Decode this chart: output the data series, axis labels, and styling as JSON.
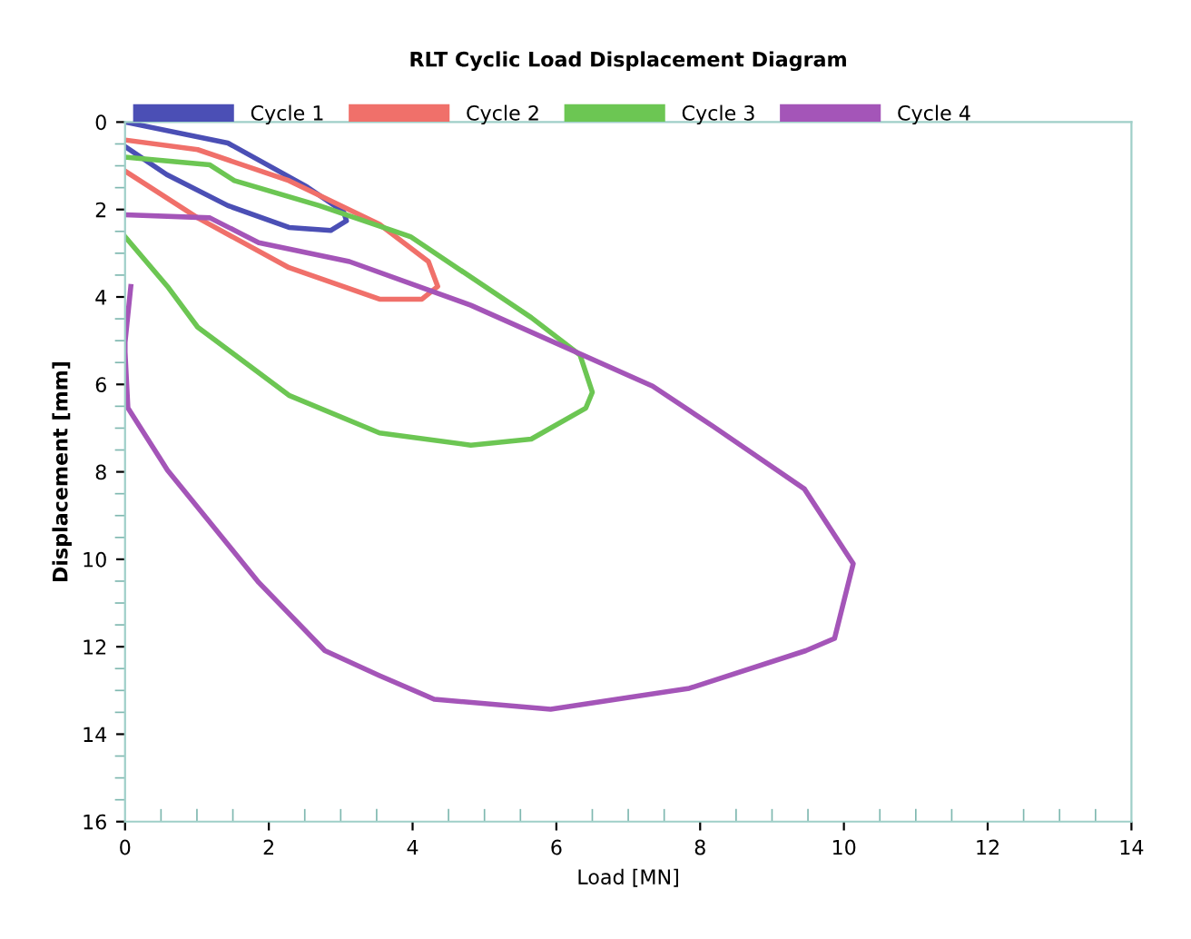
{
  "chart_data": {
    "type": "line",
    "title": "RLT Cyclic Load Displacement Diagram",
    "xlabel": "Load [MN]",
    "ylabel": "Displacement [mm]",
    "xlim": [
      0,
      14
    ],
    "xticks": [
      0,
      2,
      4,
      6,
      8,
      10,
      12,
      14
    ],
    "ylim": [
      16,
      0
    ],
    "yticks": [
      0,
      2,
      4,
      6,
      8,
      10,
      12,
      14,
      16
    ],
    "grid": false,
    "legend": "top",
    "marker": "none",
    "line_style": "solid",
    "series": [
      {
        "name": "Cycle 1",
        "color": "#4b4fb5",
        "x": [
          0,
          1.43,
          2.53,
          3.04,
          3.08,
          2.86,
          2.28,
          1.43,
          0.58,
          0
        ],
        "values": [
          0,
          0.48,
          1.48,
          2.05,
          2.26,
          2.48,
          2.41,
          1.91,
          1.2,
          0.56
        ]
      },
      {
        "name": "Cycle 2",
        "color": "#f0706a",
        "x": [
          0,
          1.01,
          2.28,
          3.54,
          4.22,
          4.35,
          4.13,
          3.54,
          2.28,
          1.01,
          0
        ],
        "values": [
          0.41,
          0.63,
          1.34,
          2.34,
          3.19,
          3.76,
          4.05,
          4.05,
          3.33,
          2.19,
          1.12
        ]
      },
      {
        "name": "Cycle 3",
        "color": "#6cc653",
        "x": [
          0,
          1.18,
          1.52,
          2.7,
          3.97,
          5.65,
          6.33,
          6.5,
          6.41,
          5.65,
          4.81,
          3.54,
          2.28,
          1.01,
          0.59,
          0
        ],
        "values": [
          0.8,
          0.98,
          1.34,
          1.91,
          2.62,
          4.47,
          5.33,
          6.18,
          6.54,
          7.25,
          7.39,
          7.11,
          6.25,
          4.69,
          3.76,
          2.62
        ]
      },
      {
        "name": "Cycle 4",
        "color": "#a455b8",
        "x": [
          0,
          1.18,
          1.86,
          3.12,
          4.81,
          7.34,
          8.19,
          9.45,
          10.13,
          9.87,
          9.47,
          7.85,
          5.92,
          4.3,
          3.54,
          2.78,
          1.86,
          0.59,
          0.04,
          0,
          0,
          0.08
        ],
        "values": [
          2.12,
          2.19,
          2.76,
          3.19,
          4.19,
          6.04,
          6.97,
          8.39,
          10.1,
          11.81,
          12.09,
          12.95,
          13.43,
          13.2,
          12.66,
          12.09,
          10.53,
          7.96,
          6.54,
          5.26,
          5.04,
          3.76
        ]
      }
    ]
  }
}
